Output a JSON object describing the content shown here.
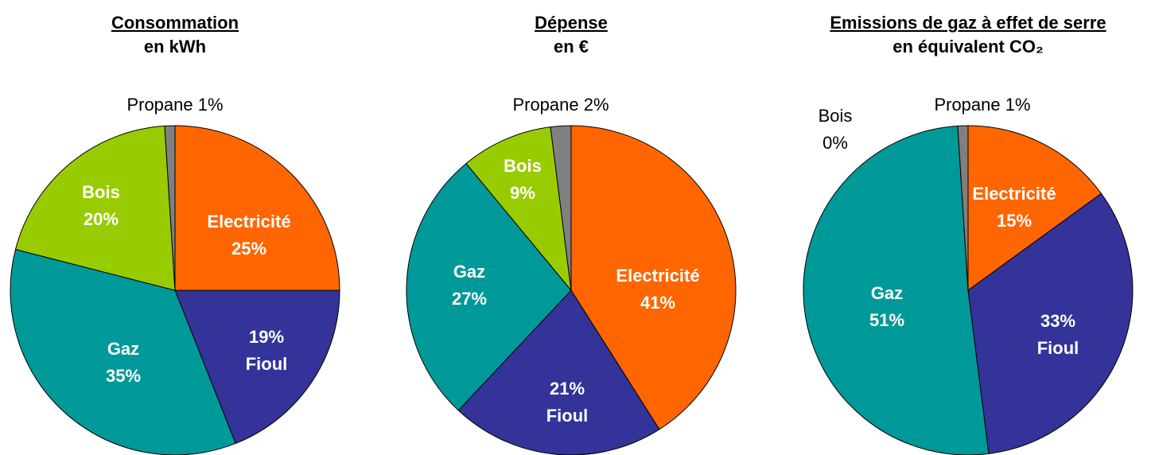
{
  "chart_data": [
    {
      "type": "pie",
      "title": "Consommation",
      "subtitle": "en kWh",
      "categories": [
        "Electricité",
        "Fioul",
        "Gaz",
        "Bois",
        "Propane"
      ],
      "values": [
        25,
        19,
        35,
        20,
        1
      ],
      "value_labels": [
        "25%",
        "19%",
        "35%",
        "20%",
        "1%"
      ],
      "colors": [
        "#ff6600",
        "#333399",
        "#009999",
        "#99cc00",
        "#808080"
      ]
    },
    {
      "type": "pie",
      "title": "Dépense",
      "subtitle": "en €",
      "categories": [
        "Electricité",
        "Fioul",
        "Gaz",
        "Bois",
        "Propane"
      ],
      "values": [
        41,
        21,
        27,
        9,
        2
      ],
      "value_labels": [
        "41%",
        "21%",
        "27%",
        "9%",
        "2%"
      ],
      "colors": [
        "#ff6600",
        "#333399",
        "#009999",
        "#99cc00",
        "#808080"
      ]
    },
    {
      "type": "pie",
      "title": "Emissions de gaz à effet de serre",
      "subtitle": "en équivalent CO₂",
      "categories": [
        "Electricité",
        "Fioul",
        "Gaz",
        "Bois",
        "Propane"
      ],
      "values": [
        15,
        33,
        51,
        0,
        1
      ],
      "value_labels": [
        "15%",
        "33%",
        "51%",
        "0%",
        "1%"
      ],
      "colors": [
        "#ff6600",
        "#333399",
        "#009999",
        "#99cc00",
        "#808080"
      ]
    }
  ]
}
